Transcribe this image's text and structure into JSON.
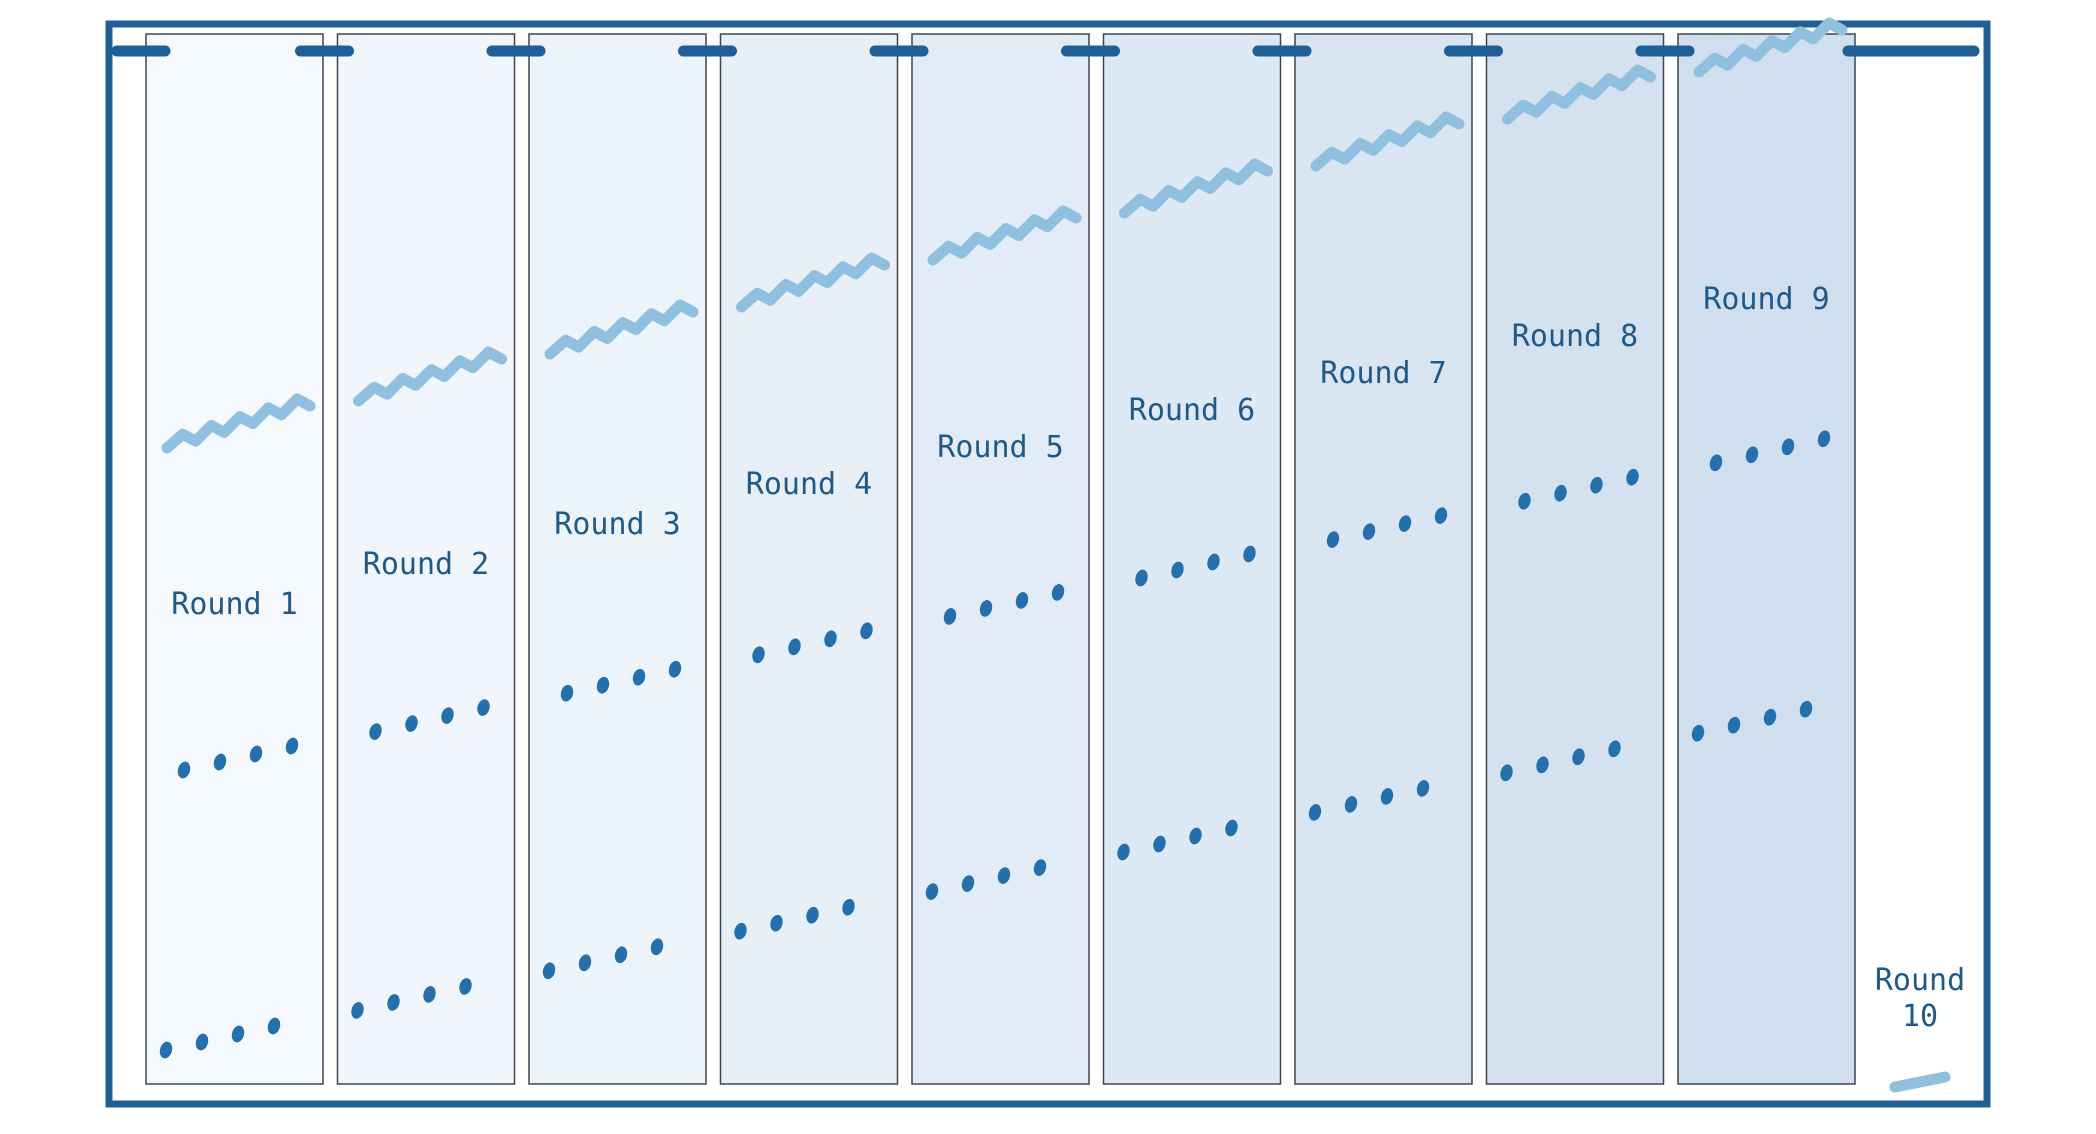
{
  "colors": {
    "frame": "#1d5f96",
    "panel_border": "#3c4650",
    "panel_fill_start": "#f5f9fd",
    "panel_fill_end": "#cfdfee",
    "wavy": "#8fc0e0",
    "dots": "#2270ad",
    "label": "#1d5a8a"
  },
  "rounds": [
    {
      "label_lines": [
        "Round  1"
      ]
    },
    {
      "label_lines": [
        "Round  2"
      ]
    },
    {
      "label_lines": [
        "Round  3"
      ]
    },
    {
      "label_lines": [
        "Round  4"
      ]
    },
    {
      "label_lines": [
        "Round  5"
      ]
    },
    {
      "label_lines": [
        "Round  6"
      ]
    },
    {
      "label_lines": [
        "Round  7"
      ]
    },
    {
      "label_lines": [
        "Round  8"
      ]
    },
    {
      "label_lines": [
        "Round  9"
      ]
    },
    {
      "label_lines": [
        "Round",
        "10"
      ]
    }
  ]
}
